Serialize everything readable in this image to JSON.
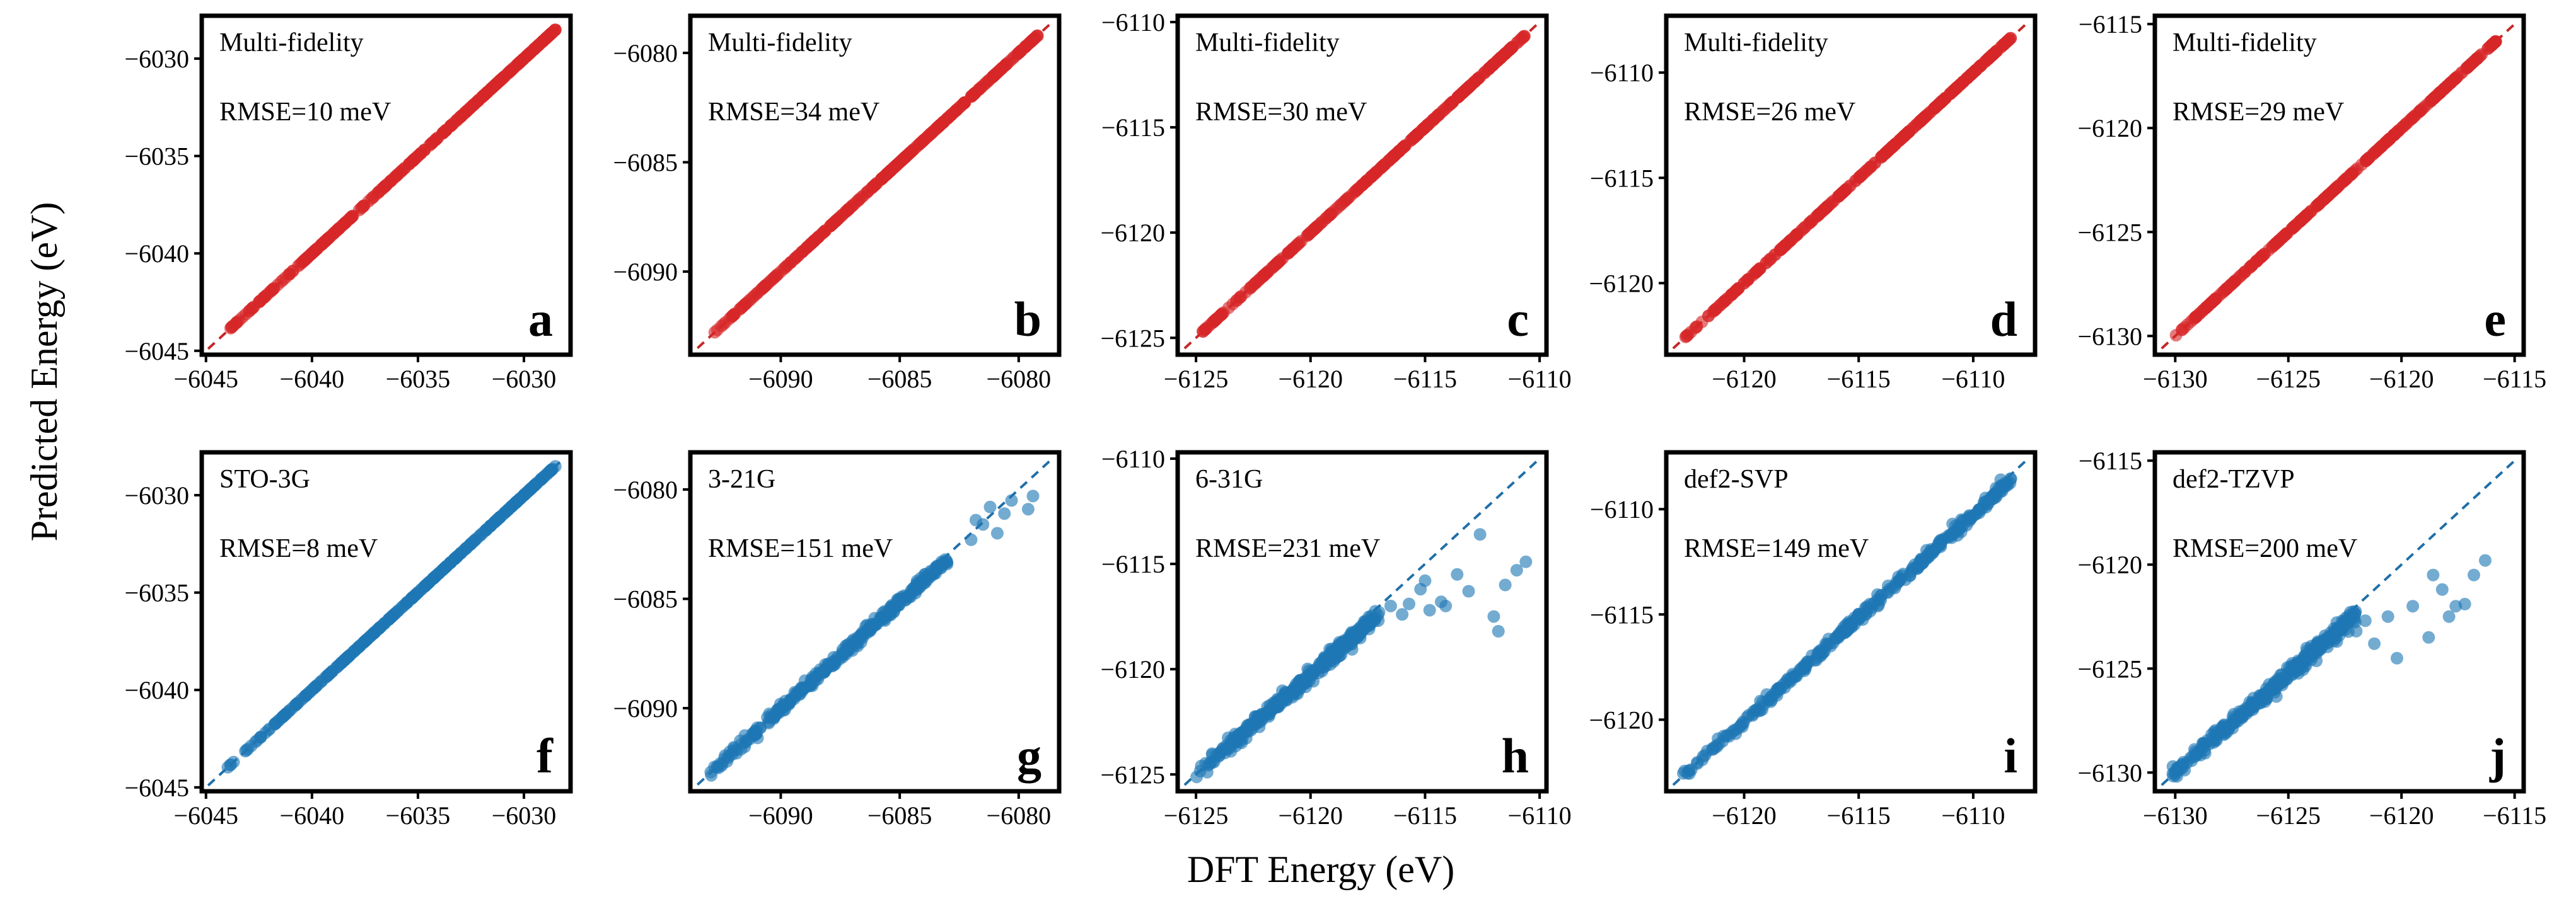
{
  "figure": {
    "xlabel": "DFT Energy (eV)",
    "ylabel": "Predicted Energy (eV)"
  },
  "colors": {
    "red": "#d62728",
    "blue": "#1f77b4"
  },
  "chart_data": [
    {
      "type": "scatter",
      "letter": "a",
      "label": "Multi-fidelity",
      "rmse": "RMSE=10 meV",
      "color": "red",
      "xlim": [
        -6045.2,
        -6027.8
      ],
      "ylim": [
        -6045.2,
        -6027.8
      ],
      "xticks": [
        -6045,
        -6040,
        -6035,
        -6030
      ],
      "yticks": [
        -6045,
        -6040,
        -6035,
        -6030
      ],
      "data_range": [
        -6044.1,
        -6028.5
      ],
      "noise": "none",
      "outliers": []
    },
    {
      "type": "scatter",
      "letter": "b",
      "label": "Multi-fidelity",
      "rmse": "RMSE=34 meV",
      "color": "red",
      "xlim": [
        -6093.8,
        -6078.3
      ],
      "ylim": [
        -6093.8,
        -6078.3
      ],
      "xticks": [
        -6090,
        -6085,
        -6080
      ],
      "yticks": [
        -6090,
        -6085,
        -6080
      ],
      "data_range": [
        -6093.0,
        -6079.2
      ],
      "noise": "none",
      "outliers": []
    },
    {
      "type": "scatter",
      "letter": "c",
      "label": "Multi-fidelity",
      "rmse": "RMSE=30 meV",
      "color": "red",
      "xlim": [
        -6125.8,
        -6109.7
      ],
      "ylim": [
        -6125.8,
        -6109.7
      ],
      "xticks": [
        -6125,
        -6120,
        -6115,
        -6110
      ],
      "yticks": [
        -6125,
        -6120,
        -6115,
        -6110
      ],
      "data_range": [
        -6125.0,
        -6110.6
      ],
      "noise": "none",
      "outliers": []
    },
    {
      "type": "scatter",
      "letter": "d",
      "label": "Multi-fidelity",
      "rmse": "RMSE=26 meV",
      "color": "red",
      "xlim": [
        -6123.4,
        -6107.3
      ],
      "ylim": [
        -6123.4,
        -6107.3
      ],
      "xticks": [
        -6120,
        -6115,
        -6110
      ],
      "yticks": [
        -6120,
        -6115,
        -6110
      ],
      "data_range": [
        -6122.7,
        -6108.3
      ],
      "noise": "none",
      "outliers": []
    },
    {
      "type": "scatter",
      "letter": "e",
      "label": "Multi-fidelity",
      "rmse": "RMSE=29 meV",
      "color": "red",
      "xlim": [
        -6130.9,
        -6114.6
      ],
      "ylim": [
        -6130.9,
        -6114.6
      ],
      "xticks": [
        -6130,
        -6125,
        -6120,
        -6115
      ],
      "yticks": [
        -6130,
        -6125,
        -6120,
        -6115
      ],
      "data_range": [
        -6130.2,
        -6115.8
      ],
      "noise": "none",
      "outliers": []
    },
    {
      "type": "scatter",
      "letter": "f",
      "label": "STO-3G",
      "rmse": "RMSE=8 meV",
      "color": "blue",
      "xlim": [
        -6045.2,
        -6027.8
      ],
      "ylim": [
        -6045.2,
        -6027.8
      ],
      "xticks": [
        -6045,
        -6040,
        -6035,
        -6030
      ],
      "yticks": [
        -6045,
        -6040,
        -6035,
        -6030
      ],
      "data_range": [
        -6044.1,
        -6028.5
      ],
      "noise": "none",
      "outliers": []
    },
    {
      "type": "scatter",
      "letter": "g",
      "label": "3-21G",
      "rmse": "RMSE=151 meV",
      "color": "blue",
      "xlim": [
        -6093.8,
        -6078.3
      ],
      "ylim": [
        -6093.8,
        -6078.3
      ],
      "xticks": [
        -6090,
        -6085,
        -6080
      ],
      "yticks": [
        -6090,
        -6085,
        -6080
      ],
      "data_range": [
        -6093.0,
        -6083.0
      ],
      "noise": "medium",
      "outliers": [
        [
          -6082.0,
          -6082.3
        ],
        [
          -6081.5,
          -6081.6
        ],
        [
          -6081.2,
          -6080.8
        ],
        [
          -6081.8,
          -6081.4
        ],
        [
          -6080.9,
          -6082.0
        ],
        [
          -6080.3,
          -6080.5
        ],
        [
          -6079.6,
          -6080.9
        ],
        [
          -6079.4,
          -6080.3
        ],
        [
          -6080.6,
          -6081.1
        ]
      ]
    },
    {
      "type": "scatter",
      "letter": "h",
      "label": "6-31G",
      "rmse": "RMSE=231 meV",
      "color": "blue",
      "xlim": [
        -6125.8,
        -6109.7
      ],
      "ylim": [
        -6125.8,
        -6109.7
      ],
      "xticks": [
        -6125,
        -6120,
        -6115,
        -6110
      ],
      "yticks": [
        -6125,
        -6120,
        -6115,
        -6110
      ],
      "data_range": [
        -6125.0,
        -6117.0
      ],
      "noise": "large",
      "outliers": [
        [
          -6116.5,
          -6117.0
        ],
        [
          -6116.0,
          -6117.4
        ],
        [
          -6115.7,
          -6116.9
        ],
        [
          -6115.2,
          -6116.2
        ],
        [
          -6115.0,
          -6115.8
        ],
        [
          -6114.8,
          -6117.2
        ],
        [
          -6114.1,
          -6117.0
        ],
        [
          -6114.3,
          -6116.8
        ],
        [
          -6113.6,
          -6115.5
        ],
        [
          -6113.1,
          -6116.3
        ],
        [
          -6112.6,
          -6113.6
        ],
        [
          -6112.0,
          -6117.5
        ],
        [
          -6111.8,
          -6118.2
        ],
        [
          -6111.0,
          -6115.3
        ],
        [
          -6111.5,
          -6116.0
        ],
        [
          -6110.6,
          -6114.9
        ]
      ]
    },
    {
      "type": "scatter",
      "letter": "i",
      "label": "def2-SVP",
      "rmse": "RMSE=149 meV",
      "color": "blue",
      "xlim": [
        -6123.4,
        -6107.3
      ],
      "ylim": [
        -6123.4,
        -6107.3
      ],
      "xticks": [
        -6120,
        -6115,
        -6110
      ],
      "yticks": [
        -6120,
        -6115,
        -6110
      ],
      "data_range": [
        -6122.7,
        -6108.3
      ],
      "noise": "medium",
      "outliers": [
        [
          -6110.9,
          -6110.7
        ],
        [
          -6110.2,
          -6110.4
        ],
        [
          -6109.5,
          -6109.8
        ],
        [
          -6108.8,
          -6108.6
        ],
        [
          -6109.1,
          -6109.3
        ]
      ]
    },
    {
      "type": "scatter",
      "letter": "j",
      "label": "def2-TZVP",
      "rmse": "RMSE=200 meV",
      "color": "blue",
      "xlim": [
        -6130.9,
        -6114.6
      ],
      "ylim": [
        -6130.9,
        -6114.6
      ],
      "xticks": [
        -6130,
        -6125,
        -6120,
        -6115
      ],
      "yticks": [
        -6130,
        -6125,
        -6120,
        -6115
      ],
      "data_range": [
        -6130.2,
        -6122.0
      ],
      "noise": "large",
      "outliers": [
        [
          -6122.0,
          -6123.2
        ],
        [
          -6121.2,
          -6123.8
        ],
        [
          -6120.6,
          -6122.5
        ],
        [
          -6120.2,
          -6124.5
        ],
        [
          -6119.5,
          -6122.0
        ],
        [
          -6118.8,
          -6123.5
        ],
        [
          -6118.2,
          -6121.2
        ],
        [
          -6117.9,
          -6122.5
        ],
        [
          -6117.6,
          -6122.0
        ],
        [
          -6117.2,
          -6121.9
        ],
        [
          -6116.8,
          -6120.5
        ],
        [
          -6116.3,
          -6119.8
        ],
        [
          -6118.6,
          -6120.5
        ],
        [
          -6121.6,
          -6122.7
        ]
      ]
    }
  ]
}
